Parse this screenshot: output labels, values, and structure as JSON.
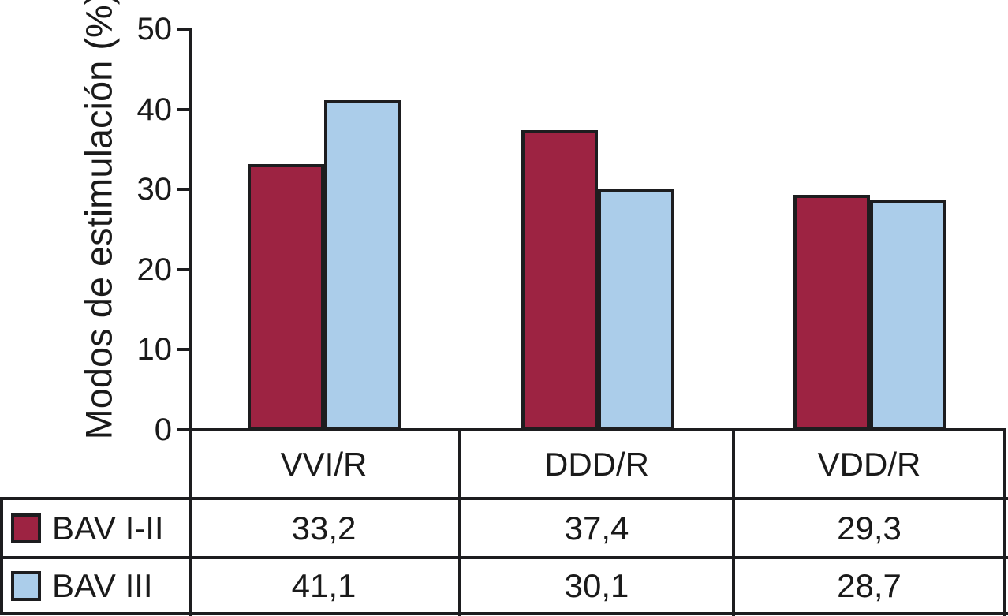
{
  "figure": {
    "background": "#FFFFFF",
    "line_color": "#1D1D1F",
    "text_color": "#1A1A1A"
  },
  "chart_data": {
    "type": "bar",
    "title": "",
    "xlabel": "",
    "ylabel": "Modos de estimulación (%)",
    "ylim": [
      0,
      50
    ],
    "yticks": [
      "0",
      "10",
      "20",
      "30",
      "40",
      "50"
    ],
    "grid": false,
    "legend_position": "table-left",
    "categories": [
      "VVI/R",
      "DDD/R",
      "VDD/R"
    ],
    "series": [
      {
        "name": "BAV I-II",
        "color": "#9D2342",
        "values": [
          33.2,
          37.4,
          29.3
        ],
        "value_labels": [
          "33,2",
          "37,4",
          "29,3"
        ]
      },
      {
        "name": "BAV III",
        "color": "#ABCDEA",
        "values": [
          41.1,
          30.1,
          28.7
        ],
        "value_labels": [
          "41,1",
          "30,1",
          "28,7"
        ]
      }
    ]
  }
}
